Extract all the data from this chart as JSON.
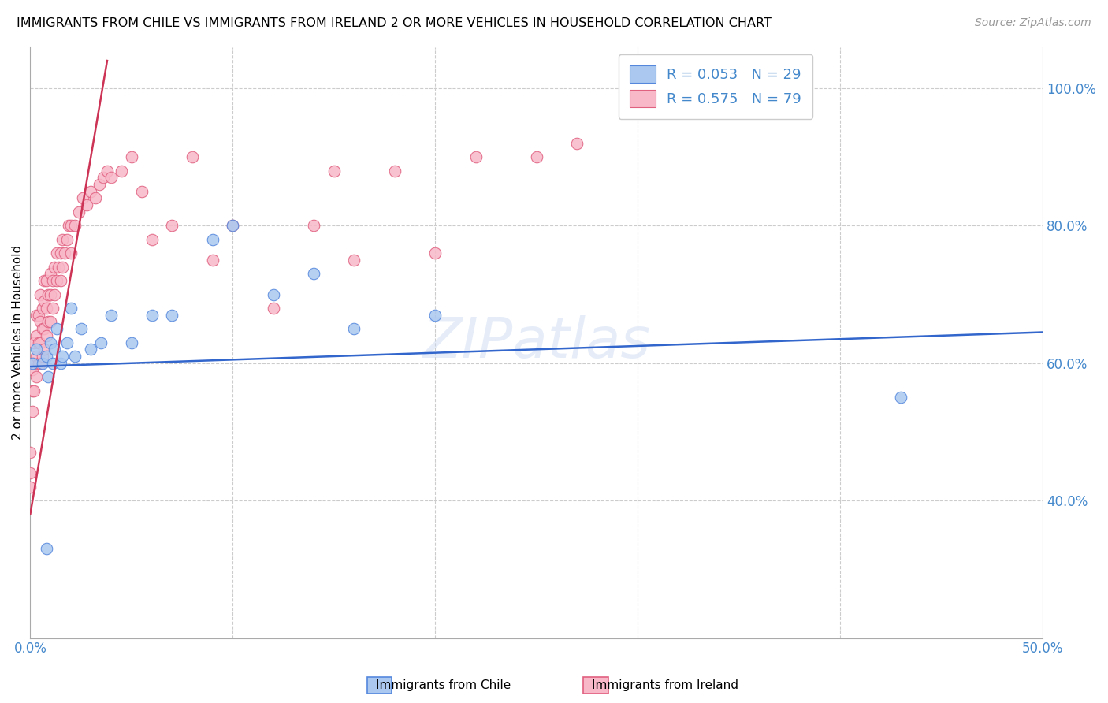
{
  "title": "IMMIGRANTS FROM CHILE VS IMMIGRANTS FROM IRELAND 2 OR MORE VEHICLES IN HOUSEHOLD CORRELATION CHART",
  "source": "Source: ZipAtlas.com",
  "ylabel": "2 or more Vehicles in Household",
  "xlim": [
    0.0,
    0.5
  ],
  "ylim": [
    0.2,
    1.06
  ],
  "x_tick_positions": [
    0.0,
    0.1,
    0.2,
    0.3,
    0.4,
    0.5
  ],
  "x_tick_labels": [
    "0.0%",
    "",
    "",
    "",
    "",
    "50.0%"
  ],
  "y_ticks_right": [
    0.4,
    0.6,
    0.8,
    1.0
  ],
  "y_tick_labels_right": [
    "40.0%",
    "60.0%",
    "80.0%",
    "100.0%"
  ],
  "chile_fill_color": "#aac8f0",
  "chile_edge_color": "#5588dd",
  "ireland_fill_color": "#f8b8c8",
  "ireland_edge_color": "#e06080",
  "chile_line_color": "#3366cc",
  "ireland_line_color": "#cc3355",
  "legend_chile_label": "R = 0.053   N = 29",
  "legend_ireland_label": "R = 0.575   N = 79",
  "watermark": "ZIPatlas",
  "chile_x": [
    0.001,
    0.003,
    0.006,
    0.008,
    0.009,
    0.01,
    0.011,
    0.012,
    0.013,
    0.015,
    0.016,
    0.018,
    0.02,
    0.022,
    0.025,
    0.03,
    0.035,
    0.04,
    0.05,
    0.06,
    0.07,
    0.09,
    0.1,
    0.12,
    0.14,
    0.16,
    0.2,
    0.43,
    0.008
  ],
  "chile_y": [
    0.6,
    0.62,
    0.6,
    0.61,
    0.58,
    0.63,
    0.6,
    0.62,
    0.65,
    0.6,
    0.61,
    0.63,
    0.68,
    0.61,
    0.65,
    0.62,
    0.63,
    0.67,
    0.63,
    0.67,
    0.67,
    0.78,
    0.8,
    0.7,
    0.73,
    0.65,
    0.67,
    0.55,
    0.33
  ],
  "ireland_x": [
    0.0,
    0.0,
    0.0,
    0.001,
    0.001,
    0.001,
    0.002,
    0.002,
    0.002,
    0.003,
    0.003,
    0.003,
    0.003,
    0.004,
    0.004,
    0.004,
    0.005,
    0.005,
    0.005,
    0.005,
    0.006,
    0.006,
    0.006,
    0.007,
    0.007,
    0.007,
    0.007,
    0.008,
    0.008,
    0.008,
    0.009,
    0.009,
    0.01,
    0.01,
    0.01,
    0.011,
    0.011,
    0.012,
    0.012,
    0.013,
    0.013,
    0.014,
    0.015,
    0.015,
    0.016,
    0.016,
    0.017,
    0.018,
    0.019,
    0.02,
    0.02,
    0.022,
    0.024,
    0.026,
    0.028,
    0.03,
    0.032,
    0.034,
    0.036,
    0.038,
    0.04,
    0.045,
    0.05,
    0.055,
    0.06,
    0.07,
    0.08,
    0.09,
    0.1,
    0.12,
    0.14,
    0.15,
    0.16,
    0.18,
    0.2,
    0.22,
    0.25,
    0.27,
    0.3
  ],
  "ireland_y": [
    0.44,
    0.47,
    0.42,
    0.53,
    0.56,
    0.59,
    0.56,
    0.6,
    0.63,
    0.58,
    0.61,
    0.64,
    0.67,
    0.6,
    0.63,
    0.67,
    0.6,
    0.63,
    0.66,
    0.7,
    0.61,
    0.65,
    0.68,
    0.62,
    0.65,
    0.69,
    0.72,
    0.64,
    0.68,
    0.72,
    0.66,
    0.7,
    0.66,
    0.7,
    0.73,
    0.68,
    0.72,
    0.7,
    0.74,
    0.72,
    0.76,
    0.74,
    0.72,
    0.76,
    0.74,
    0.78,
    0.76,
    0.78,
    0.8,
    0.76,
    0.8,
    0.8,
    0.82,
    0.84,
    0.83,
    0.85,
    0.84,
    0.86,
    0.87,
    0.88,
    0.87,
    0.88,
    0.9,
    0.85,
    0.78,
    0.8,
    0.9,
    0.75,
    0.8,
    0.68,
    0.8,
    0.88,
    0.75,
    0.88,
    0.76,
    0.9,
    0.9,
    0.92,
    1.02
  ],
  "ireland_line_x0": 0.0,
  "ireland_line_y0": 0.38,
  "ireland_line_x1": 0.038,
  "ireland_line_y1": 1.04,
  "chile_line_x0": 0.0,
  "chile_line_y0": 0.595,
  "chile_line_x1": 0.5,
  "chile_line_y1": 0.645
}
